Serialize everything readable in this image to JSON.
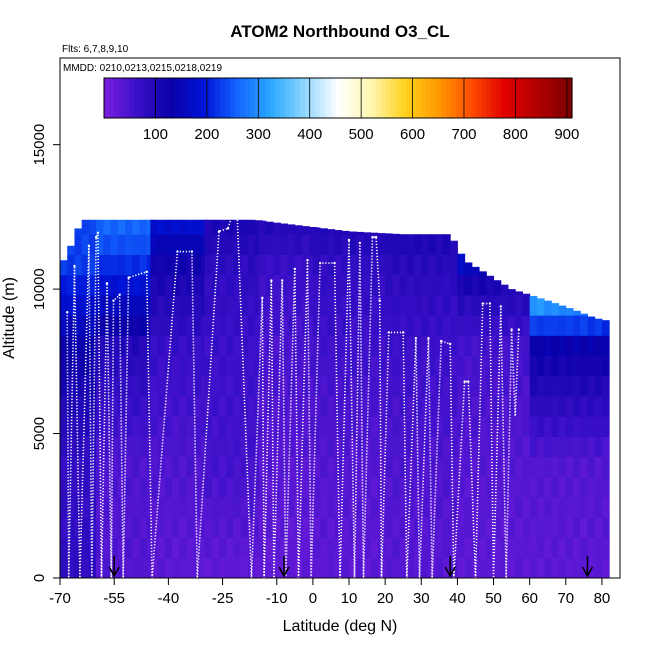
{
  "chart_data": {
    "type": "heatmap",
    "title": "ATOM2 Northbound O3_CL",
    "subtitle_flights": "Flts: 6,7,8,9,10",
    "subtitle_dates": "MMDD: 0210,0213,0215,0218,0219",
    "xlabel": "Latitude (deg N)",
    "ylabel": "Altitude (m)",
    "xlim": [
      -70,
      85
    ],
    "ylim": [
      0,
      18000
    ],
    "x_ticks": [
      -70,
      -55,
      -40,
      -25,
      -10,
      0,
      10,
      20,
      30,
      40,
      50,
      60,
      70,
      80
    ],
    "x_tick_labels": [
      "-70",
      "-55",
      "-40",
      "-25",
      "-10",
      "0",
      "10",
      "20",
      "30",
      "40",
      "50",
      "60",
      "70",
      "80"
    ],
    "y_ticks": [
      0,
      5000,
      10000,
      15000
    ],
    "y_tick_labels": [
      "0",
      "5000",
      "10000",
      "15000"
    ],
    "colorbar": {
      "range": [
        0,
        910
      ],
      "ticks": [
        100,
        200,
        300,
        400,
        500,
        600,
        700,
        800,
        900
      ],
      "tick_labels": [
        "100",
        "200",
        "300",
        "400",
        "500",
        "600",
        "700",
        "800",
        "900"
      ],
      "colors": [
        "#7a1fe0",
        "#3a10c8",
        "#0a00a8",
        "#0014d8",
        "#1466ff",
        "#2aa8ff",
        "#8fd6ff",
        "#ffffff",
        "#fff6b0",
        "#ffd21e",
        "#ff9a00",
        "#ff4c00",
        "#e00000",
        "#b00000",
        "#7a0000"
      ]
    },
    "curtain_top_altitude": [
      [
        -70,
        10800
      ],
      [
        -68,
        11200
      ],
      [
        -66,
        11800
      ],
      [
        -64,
        12400
      ],
      [
        -40,
        12400
      ],
      [
        -22,
        12400
      ],
      [
        -16,
        12400
      ],
      [
        -10,
        12300
      ],
      [
        10,
        12000
      ],
      [
        25,
        11900
      ],
      [
        38,
        11900
      ],
      [
        42,
        11000
      ],
      [
        55,
        10000
      ],
      [
        65,
        9600
      ],
      [
        72,
        9300
      ],
      [
        78,
        9000
      ],
      [
        82,
        8900
      ]
    ],
    "column_ozone_ppb": [
      {
        "lat_range": [
          -70,
          -60
        ],
        "values": [
          [
            0,
            80
          ],
          [
            4000,
            75
          ],
          [
            8000,
            130
          ],
          [
            11000,
            230
          ]
        ]
      },
      {
        "lat_range": [
          -60,
          -45
        ],
        "values": [
          [
            0,
            40
          ],
          [
            4000,
            45
          ],
          [
            8000,
            95
          ],
          [
            10000,
            180
          ],
          [
            12000,
            260
          ]
        ]
      },
      {
        "lat_range": [
          -45,
          -30
        ],
        "values": [
          [
            0,
            30
          ],
          [
            4000,
            45
          ],
          [
            8000,
            70
          ],
          [
            11000,
            120
          ],
          [
            12400,
            190
          ]
        ]
      },
      {
        "lat_range": [
          -30,
          -15
        ],
        "values": [
          [
            0,
            25
          ],
          [
            4000,
            55
          ],
          [
            8000,
            65
          ],
          [
            11000,
            85
          ],
          [
            12400,
            110
          ]
        ]
      },
      {
        "lat_range": [
          -15,
          0
        ],
        "values": [
          [
            0,
            25
          ],
          [
            4000,
            35
          ],
          [
            8000,
            50
          ],
          [
            11000,
            70
          ],
          [
            12300,
            100
          ]
        ]
      },
      {
        "lat_range": [
          0,
          20
        ],
        "values": [
          [
            0,
            30
          ],
          [
            4000,
            40
          ],
          [
            8000,
            60
          ],
          [
            11000,
            80
          ],
          [
            12000,
            100
          ]
        ]
      },
      {
        "lat_range": [
          20,
          40
        ],
        "values": [
          [
            0,
            35
          ],
          [
            4000,
            45
          ],
          [
            8000,
            65
          ],
          [
            11000,
            90
          ],
          [
            11900,
            110
          ]
        ]
      },
      {
        "lat_range": [
          40,
          60
        ],
        "values": [
          [
            0,
            30
          ],
          [
            4000,
            38
          ],
          [
            8000,
            55
          ],
          [
            10000,
            100
          ],
          [
            11000,
            180
          ]
        ]
      },
      {
        "lat_range": [
          60,
          82
        ],
        "values": [
          [
            0,
            30
          ],
          [
            4000,
            40
          ],
          [
            8000,
            130
          ],
          [
            9000,
            260
          ],
          [
            9600,
            330
          ]
        ]
      }
    ],
    "profile_flight_track": [
      [
        -68,
        9200
      ],
      [
        -67.6,
        0
      ],
      [
        -66,
        10800
      ],
      [
        -64.5,
        0
      ],
      [
        -62,
        11500
      ],
      [
        -61.2,
        0
      ],
      [
        -60,
        11800
      ],
      [
        -59.5,
        11950
      ],
      [
        -58.5,
        0
      ],
      [
        -57,
        10200
      ],
      [
        -55.8,
        0
      ],
      [
        -55.2,
        9600
      ],
      [
        -53.5,
        9800
      ],
      [
        -52.5,
        0
      ],
      [
        -51,
        10400
      ],
      [
        -46,
        10600
      ],
      [
        -44.5,
        0
      ],
      [
        -37.5,
        11300
      ],
      [
        -33.5,
        11300
      ],
      [
        -32,
        0
      ],
      [
        -26,
        12000
      ],
      [
        -23.5,
        12100
      ],
      [
        -22,
        12700
      ],
      [
        -21,
        12700
      ],
      [
        -17,
        0
      ],
      [
        -14,
        9700
      ],
      [
        -13.5,
        0
      ],
      [
        -11.5,
        10300
      ],
      [
        -10.8,
        0
      ],
      [
        -8.5,
        10300
      ],
      [
        -7.5,
        0
      ],
      [
        -5,
        10700
      ],
      [
        -4,
        0
      ],
      [
        -1.5,
        11000
      ],
      [
        -0.5,
        0
      ],
      [
        2,
        10900
      ],
      [
        6,
        10900
      ],
      [
        7.5,
        0
      ],
      [
        10,
        11700
      ],
      [
        11.5,
        0
      ],
      [
        13,
        11600
      ],
      [
        14,
        0
      ],
      [
        16.5,
        11800
      ],
      [
        17.5,
        11800
      ],
      [
        18.5,
        9600
      ],
      [
        19,
        0
      ],
      [
        21,
        8500
      ],
      [
        25,
        8500
      ],
      [
        26,
        0
      ],
      [
        28.5,
        8300
      ],
      [
        29.5,
        0
      ],
      [
        32,
        8300
      ],
      [
        33,
        0
      ],
      [
        35.5,
        8200
      ],
      [
        38,
        8100
      ],
      [
        39,
        0
      ],
      [
        42,
        6800
      ],
      [
        43,
        6800
      ],
      [
        45,
        0
      ],
      [
        47,
        9500
      ],
      [
        49,
        9500
      ],
      [
        50,
        0
      ],
      [
        52,
        9400
      ],
      [
        53.5,
        0
      ],
      [
        55,
        8600
      ],
      [
        56,
        5600
      ],
      [
        57,
        8600
      ]
    ],
    "sounding_markers_lat": [
      -55,
      -8,
      38,
      76
    ]
  }
}
